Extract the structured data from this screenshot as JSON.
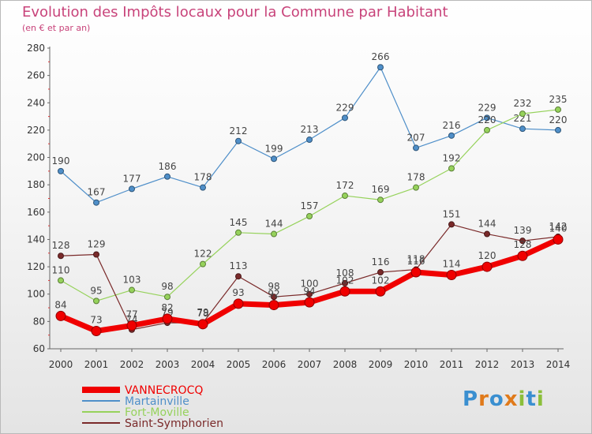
{
  "header": {
    "title": "Evolution des Impôts locaux pour la Commune par Habitant",
    "subtitle": "(en € et par an)"
  },
  "chart_data": {
    "type": "line",
    "title": "Evolution des Impôts locaux pour la Commune par Habitant",
    "subtitle": "(en € et par an)",
    "xlabel": "",
    "ylabel": "",
    "categories": [
      "2000",
      "2001",
      "2002",
      "2003",
      "2004",
      "2005",
      "2006",
      "2007",
      "2008",
      "2009",
      "2010",
      "2011",
      "2012",
      "2013",
      "2014"
    ],
    "ylim": [
      60,
      280
    ],
    "yticks": [
      60,
      80,
      100,
      120,
      140,
      160,
      180,
      200,
      220,
      240,
      260,
      280
    ],
    "grid": false,
    "legend_position": "bottom-left",
    "series": [
      {
        "name": "Martainville",
        "color": "#4f8fc9",
        "width": 1.2,
        "values": [
          190,
          167,
          177,
          186,
          178,
          212,
          199,
          213,
          229,
          266,
          207,
          216,
          229,
          221,
          220
        ]
      },
      {
        "name": "Fort-Moville",
        "color": "#96d25b",
        "width": 1.2,
        "values": [
          110,
          95,
          103,
          98,
          122,
          145,
          144,
          157,
          172,
          169,
          178,
          192,
          220,
          232,
          235
        ]
      },
      {
        "name": "Saint-Symphorien",
        "color": "#7a2a2a",
        "width": 1.2,
        "values": [
          128,
          129,
          74,
          79,
          79,
          113,
          98,
          100,
          108,
          116,
          118,
          151,
          144,
          139,
          142
        ]
      },
      {
        "name": "VANNECROCQ",
        "color": "#f00000",
        "width": 7,
        "values": [
          84,
          73,
          77,
          82,
          78,
          93,
          92,
          94,
          102,
          102,
          116,
          114,
          120,
          128,
          140
        ]
      }
    ],
    "legend_order": [
      "VANNECROCQ",
      "Martainville",
      "Fort-Moville",
      "Saint-Symphorien"
    ]
  },
  "branding": {
    "logo_text": "Proxiti",
    "letters": [
      {
        "ch": "P",
        "color": "#3a8fd0"
      },
      {
        "ch": "r",
        "color": "#e07a1a"
      },
      {
        "ch": "o",
        "color": "#3a8fd0"
      },
      {
        "ch": "x",
        "color": "#e07a1a"
      },
      {
        "ch": "i",
        "color": "#8bbf3b"
      },
      {
        "ch": "t",
        "color": "#3a8fd0"
      },
      {
        "ch": "i",
        "color": "#8bbf3b"
      }
    ]
  }
}
